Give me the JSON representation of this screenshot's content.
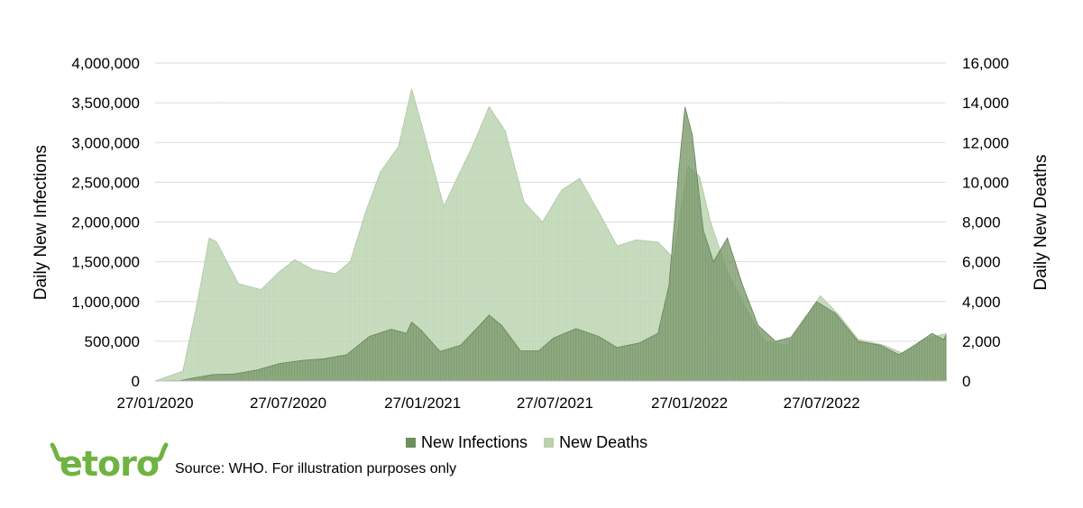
{
  "source_text": "Source: WHO. For illustration purposes only",
  "logo": {
    "text": "etoro",
    "color": "#6fb342"
  },
  "colors": {
    "infections": "#6f8f5f",
    "deaths": "#b9d1ad",
    "grid": "#d9d9d9"
  },
  "chart_data": {
    "type": "area",
    "xlabel": "",
    "ylabel": "Daily New Infections",
    "y2label": "Daily New Deaths",
    "ylim": [
      0,
      4000000
    ],
    "y2lim": [
      0,
      16000
    ],
    "yticks": [
      "0",
      "500,000",
      "1,000,000",
      "1,500,000",
      "2,000,000",
      "2,500,000",
      "3,000,000",
      "3,500,000",
      "4,000,000"
    ],
    "y2ticks": [
      "0",
      "2,000",
      "4,000",
      "6,000",
      "8,000",
      "10,000",
      "12,000",
      "14,000",
      "16,000"
    ],
    "xticks": [
      "27/01/2020",
      "27/07/2020",
      "27/01/2021",
      "27/07/2021",
      "27/01/2022",
      "27/07/2022"
    ],
    "grid": true,
    "legend_position": "bottom",
    "series": [
      {
        "name": "New Infections",
        "axis": "left",
        "points": [
          [
            "2020-01-27",
            0
          ],
          [
            "2020-03-01",
            5000
          ],
          [
            "2020-03-20",
            40000
          ],
          [
            "2020-04-15",
            80000
          ],
          [
            "2020-05-15",
            90000
          ],
          [
            "2020-06-15",
            140000
          ],
          [
            "2020-07-15",
            220000
          ],
          [
            "2020-08-15",
            260000
          ],
          [
            "2020-09-15",
            280000
          ],
          [
            "2020-10-15",
            330000
          ],
          [
            "2020-11-15",
            560000
          ],
          [
            "2020-12-15",
            650000
          ],
          [
            "2021-01-05",
            600000
          ],
          [
            "2021-01-12",
            740000
          ],
          [
            "2021-01-25",
            640000
          ],
          [
            "2021-02-20",
            370000
          ],
          [
            "2021-03-20",
            450000
          ],
          [
            "2021-04-15",
            700000
          ],
          [
            "2021-04-28",
            830000
          ],
          [
            "2021-05-15",
            700000
          ],
          [
            "2021-06-10",
            380000
          ],
          [
            "2021-07-05",
            380000
          ],
          [
            "2021-07-25",
            540000
          ],
          [
            "2021-08-25",
            660000
          ],
          [
            "2021-09-25",
            560000
          ],
          [
            "2021-10-20",
            420000
          ],
          [
            "2021-11-20",
            480000
          ],
          [
            "2021-12-15",
            600000
          ],
          [
            "2021-12-30",
            1200000
          ],
          [
            "2022-01-12",
            2600000
          ],
          [
            "2022-01-21",
            3450000
          ],
          [
            "2022-01-31",
            3100000
          ],
          [
            "2022-02-15",
            1900000
          ],
          [
            "2022-03-01",
            1500000
          ],
          [
            "2022-03-20",
            1800000
          ],
          [
            "2022-04-10",
            1200000
          ],
          [
            "2022-05-01",
            700000
          ],
          [
            "2022-05-25",
            500000
          ],
          [
            "2022-06-15",
            550000
          ],
          [
            "2022-07-20",
            1000000
          ],
          [
            "2022-08-15",
            850000
          ],
          [
            "2022-09-15",
            500000
          ],
          [
            "2022-10-15",
            450000
          ],
          [
            "2022-11-10",
            330000
          ],
          [
            "2022-12-01",
            450000
          ],
          [
            "2022-12-25",
            600000
          ],
          [
            "2023-01-10",
            520000
          ],
          [
            "2023-01-13",
            580000
          ]
        ]
      },
      {
        "name": "New Deaths",
        "axis": "right",
        "points": [
          [
            "2020-01-27",
            0
          ],
          [
            "2020-03-05",
            500
          ],
          [
            "2020-03-25",
            4000
          ],
          [
            "2020-04-10",
            7200
          ],
          [
            "2020-04-20",
            7000
          ],
          [
            "2020-05-20",
            4900
          ],
          [
            "2020-06-20",
            4600
          ],
          [
            "2020-07-15",
            5500
          ],
          [
            "2020-08-05",
            6100
          ],
          [
            "2020-08-30",
            5600
          ],
          [
            "2020-09-30",
            5400
          ],
          [
            "2020-10-20",
            6000
          ],
          [
            "2020-11-10",
            8500
          ],
          [
            "2020-11-30",
            10500
          ],
          [
            "2020-12-25",
            11800
          ],
          [
            "2021-01-12",
            14700
          ],
          [
            "2021-01-25",
            13000
          ],
          [
            "2021-02-25",
            8800
          ],
          [
            "2021-03-15",
            10200
          ],
          [
            "2021-04-05",
            11800
          ],
          [
            "2021-04-28",
            13800
          ],
          [
            "2021-05-20",
            12600
          ],
          [
            "2021-06-15",
            9000
          ],
          [
            "2021-07-10",
            8000
          ],
          [
            "2021-08-05",
            9600
          ],
          [
            "2021-08-30",
            10200
          ],
          [
            "2021-09-25",
            8500
          ],
          [
            "2021-10-20",
            6800
          ],
          [
            "2021-11-15",
            7100
          ],
          [
            "2021-12-15",
            7000
          ],
          [
            "2022-01-05",
            6200
          ],
          [
            "2022-01-25",
            10800
          ],
          [
            "2022-02-10",
            10300
          ],
          [
            "2022-02-25",
            8000
          ],
          [
            "2022-03-20",
            5500
          ],
          [
            "2022-04-15",
            3600
          ],
          [
            "2022-05-10",
            2000
          ],
          [
            "2022-06-10",
            1800
          ],
          [
            "2022-07-10",
            3400
          ],
          [
            "2022-07-25",
            4300
          ],
          [
            "2022-08-20",
            3300
          ],
          [
            "2022-09-15",
            2100
          ],
          [
            "2022-10-20",
            1800
          ],
          [
            "2022-11-15",
            1400
          ],
          [
            "2022-12-15",
            2100
          ],
          [
            "2023-01-13",
            2400
          ]
        ]
      }
    ]
  }
}
